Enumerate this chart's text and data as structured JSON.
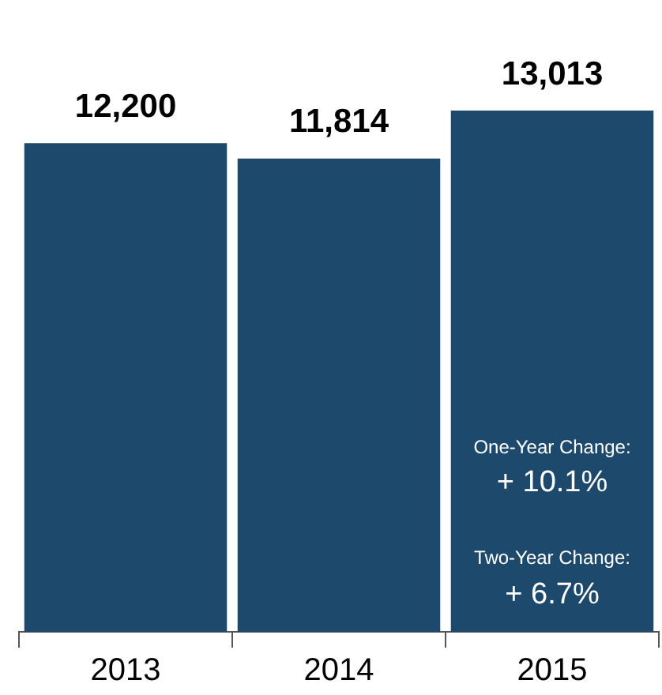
{
  "chart_data": {
    "type": "bar",
    "categories": [
      "2013",
      "2014",
      "2015"
    ],
    "values": [
      12200,
      11814,
      13013
    ],
    "color": "#1d4a6c",
    "value_labels": [
      "12,200",
      "11,814",
      "13,013"
    ],
    "annotations": [
      "One-Year Change:",
      "+ 10.1%",
      "Two-Year Change:",
      "+ 6.7%"
    ]
  }
}
